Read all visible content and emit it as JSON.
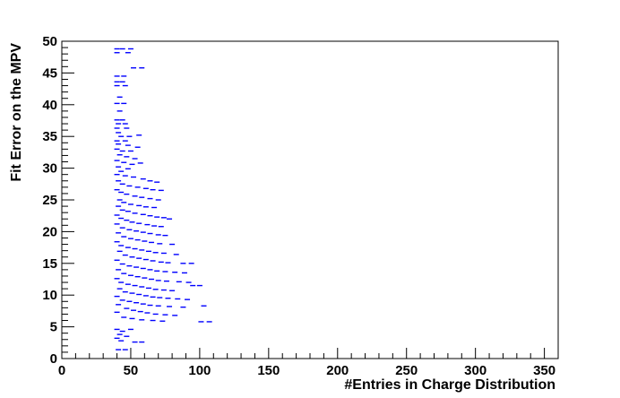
{
  "chart_data": {
    "type": "scatter",
    "title": "",
    "xlabel": "#Entries in Charge Distribution",
    "ylabel": "Fit Error on the MPV",
    "xlim": [
      0,
      360
    ],
    "ylim": [
      0,
      50
    ],
    "x_ticks": [
      0,
      50,
      100,
      150,
      200,
      250,
      300,
      350
    ],
    "y_ticks": [
      0,
      5,
      10,
      15,
      20,
      25,
      30,
      35,
      40,
      45,
      50
    ],
    "grid": false,
    "legend": "none",
    "marker_color": "#0000ff",
    "marker": "short horizontal dash",
    "points": [
      [
        40,
        48.8
      ],
      [
        44,
        48.8
      ],
      [
        50,
        48.8
      ],
      [
        40,
        48.2
      ],
      [
        48,
        48.2
      ],
      [
        52,
        45.8
      ],
      [
        58,
        45.8
      ],
      [
        40,
        44.5
      ],
      [
        45,
        44.5
      ],
      [
        40,
        43.6
      ],
      [
        44,
        43.6
      ],
      [
        40,
        43.0
      ],
      [
        46,
        43.0
      ],
      [
        42,
        41.2
      ],
      [
        40,
        40.2
      ],
      [
        45,
        40.2
      ],
      [
        42,
        39.0
      ],
      [
        40,
        37.6
      ],
      [
        44,
        37.6
      ],
      [
        41,
        37.0
      ],
      [
        46,
        37.0
      ],
      [
        40,
        36.3
      ],
      [
        47,
        36.3
      ],
      [
        41,
        35.6
      ],
      [
        43,
        35.0
      ],
      [
        49,
        35.0
      ],
      [
        56,
        35.2
      ],
      [
        40,
        34.3
      ],
      [
        46,
        34.3
      ],
      [
        41,
        33.8
      ],
      [
        48,
        33.6
      ],
      [
        55,
        33.3
      ],
      [
        40,
        33.0
      ],
      [
        44,
        32.7
      ],
      [
        50,
        32.7
      ],
      [
        42,
        32.1
      ],
      [
        47,
        31.8
      ],
      [
        53,
        31.5
      ],
      [
        40,
        31.2
      ],
      [
        45,
        30.9
      ],
      [
        51,
        30.6
      ],
      [
        57,
        30.8
      ],
      [
        41,
        30.2
      ],
      [
        48,
        29.9
      ],
      [
        43,
        29.5
      ],
      [
        40,
        29.0
      ],
      [
        46,
        28.8
      ],
      [
        52,
        28.6
      ],
      [
        59,
        28.3
      ],
      [
        64,
        28.0
      ],
      [
        69,
        27.8
      ],
      [
        41,
        28.0
      ],
      [
        44,
        27.5
      ],
      [
        49,
        27.2
      ],
      [
        55,
        27.0
      ],
      [
        61,
        26.8
      ],
      [
        66,
        26.6
      ],
      [
        72,
        26.5
      ],
      [
        40,
        26.6
      ],
      [
        43,
        26.2
      ],
      [
        47,
        25.9
      ],
      [
        53,
        25.6
      ],
      [
        58,
        25.4
      ],
      [
        64,
        25.2
      ],
      [
        70,
        25.0
      ],
      [
        42,
        25.0
      ],
      [
        45,
        24.6
      ],
      [
        50,
        24.3
      ],
      [
        56,
        24.1
      ],
      [
        61,
        23.9
      ],
      [
        67,
        23.8
      ],
      [
        41,
        24.0
      ],
      [
        44,
        23.4
      ],
      [
        48,
        23.2
      ],
      [
        53,
        22.9
      ],
      [
        59,
        22.7
      ],
      [
        64,
        22.5
      ],
      [
        69,
        22.3
      ],
      [
        74,
        22.2
      ],
      [
        78,
        22.0
      ],
      [
        40,
        22.6
      ],
      [
        43,
        22.1
      ],
      [
        47,
        21.8
      ],
      [
        51,
        21.5
      ],
      [
        56,
        21.3
      ],
      [
        62,
        21.1
      ],
      [
        67,
        20.9
      ],
      [
        72,
        20.8
      ],
      [
        40,
        21.2
      ],
      [
        44,
        20.6
      ],
      [
        49,
        20.3
      ],
      [
        54,
        20.1
      ],
      [
        59,
        19.9
      ],
      [
        64,
        19.7
      ],
      [
        70,
        19.5
      ],
      [
        75,
        19.4
      ],
      [
        41,
        19.8
      ],
      [
        45,
        19.2
      ],
      [
        50,
        18.9
      ],
      [
        55,
        18.7
      ],
      [
        60,
        18.5
      ],
      [
        65,
        18.3
      ],
      [
        71,
        18.1
      ],
      [
        80,
        18.0
      ],
      [
        40,
        18.4
      ],
      [
        43,
        17.8
      ],
      [
        48,
        17.5
      ],
      [
        53,
        17.3
      ],
      [
        58,
        17.1
      ],
      [
        63,
        16.9
      ],
      [
        68,
        16.7
      ],
      [
        74,
        16.6
      ],
      [
        83,
        16.4
      ],
      [
        42,
        16.9
      ],
      [
        46,
        16.3
      ],
      [
        51,
        16.0
      ],
      [
        56,
        15.8
      ],
      [
        61,
        15.6
      ],
      [
        66,
        15.4
      ],
      [
        72,
        15.2
      ],
      [
        77,
        15.1
      ],
      [
        88,
        15.0
      ],
      [
        94,
        15.0
      ],
      [
        40,
        15.5
      ],
      [
        44,
        14.9
      ],
      [
        49,
        14.6
      ],
      [
        54,
        14.4
      ],
      [
        59,
        14.2
      ],
      [
        64,
        14.0
      ],
      [
        69,
        13.8
      ],
      [
        75,
        13.7
      ],
      [
        82,
        13.6
      ],
      [
        89,
        13.5
      ],
      [
        41,
        14.0
      ],
      [
        45,
        13.4
      ],
      [
        50,
        13.1
      ],
      [
        55,
        12.9
      ],
      [
        60,
        12.7
      ],
      [
        65,
        12.5
      ],
      [
        70,
        12.3
      ],
      [
        76,
        12.2
      ],
      [
        85,
        12.1
      ],
      [
        92,
        12.0
      ],
      [
        40,
        12.6
      ],
      [
        43,
        12.0
      ],
      [
        48,
        11.7
      ],
      [
        53,
        11.5
      ],
      [
        58,
        11.3
      ],
      [
        63,
        11.1
      ],
      [
        68,
        10.9
      ],
      [
        74,
        10.8
      ],
      [
        80,
        10.7
      ],
      [
        95,
        11.5
      ],
      [
        100,
        11.5
      ],
      [
        42,
        11.0
      ],
      [
        46,
        10.5
      ],
      [
        51,
        10.3
      ],
      [
        56,
        10.1
      ],
      [
        61,
        9.9
      ],
      [
        66,
        9.7
      ],
      [
        71,
        9.6
      ],
      [
        77,
        9.5
      ],
      [
        84,
        9.4
      ],
      [
        91,
        9.3
      ],
      [
        40,
        9.8
      ],
      [
        44,
        9.2
      ],
      [
        49,
        9.0
      ],
      [
        54,
        8.8
      ],
      [
        59,
        8.6
      ],
      [
        64,
        8.4
      ],
      [
        70,
        8.3
      ],
      [
        78,
        8.2
      ],
      [
        88,
        8.1
      ],
      [
        103,
        8.3
      ],
      [
        41,
        8.5
      ],
      [
        47,
        7.9
      ],
      [
        52,
        7.6
      ],
      [
        57,
        7.4
      ],
      [
        62,
        7.2
      ],
      [
        68,
        7.0
      ],
      [
        75,
        6.9
      ],
      [
        82,
        6.8
      ],
      [
        40,
        7.3
      ],
      [
        45,
        6.5
      ],
      [
        51,
        6.3
      ],
      [
        58,
        6.1
      ],
      [
        66,
        6.0
      ],
      [
        73,
        5.9
      ],
      [
        101,
        5.8
      ],
      [
        107,
        5.8
      ],
      [
        40,
        4.6
      ],
      [
        44,
        4.3
      ],
      [
        50,
        4.6
      ],
      [
        42,
        3.8
      ],
      [
        47,
        3.5
      ],
      [
        40,
        3.2
      ],
      [
        43,
        2.8
      ],
      [
        53,
        2.6
      ],
      [
        58,
        2.6
      ],
      [
        41,
        1.4
      ],
      [
        46,
        1.4
      ]
    ]
  }
}
